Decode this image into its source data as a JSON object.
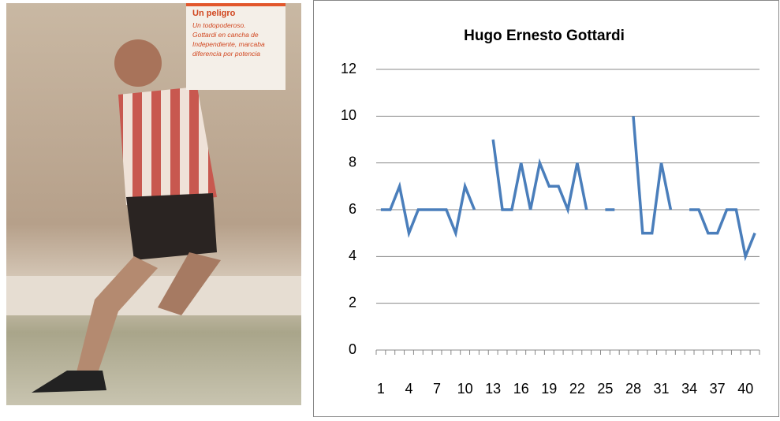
{
  "photo": {
    "caption_title": "Un peligro",
    "caption_text": [
      "Un todopoderoso.",
      "Gottardi en cancha de",
      "Independiente, marcaba",
      "diferencia por potencia"
    ]
  },
  "chart_data": {
    "type": "line",
    "title": "Hugo Ernesto Gottardi",
    "categories": [
      1,
      null,
      null,
      4,
      null,
      null,
      7,
      null,
      null,
      10,
      null,
      null,
      13,
      null,
      null,
      16,
      null,
      null,
      19,
      null,
      null,
      22,
      null,
      null,
      25,
      null,
      null,
      28,
      null,
      null,
      31,
      null,
      null,
      34,
      null,
      null,
      37,
      null,
      null,
      40,
      null
    ],
    "values": [
      6,
      6,
      7,
      5,
      6,
      6,
      6,
      6,
      5,
      7,
      6,
      null,
      9,
      6,
      6,
      8,
      6,
      8,
      7,
      7,
      6,
      8,
      6,
      null,
      6,
      6,
      null,
      10,
      5,
      5,
      8,
      6,
      null,
      6,
      6,
      5,
      5,
      6,
      6,
      4,
      5
    ],
    "color": "#4a7ebb",
    "ylim": [
      0,
      12
    ],
    "yticks": [
      0,
      2,
      4,
      6,
      8,
      10,
      12
    ],
    "grid": true
  }
}
